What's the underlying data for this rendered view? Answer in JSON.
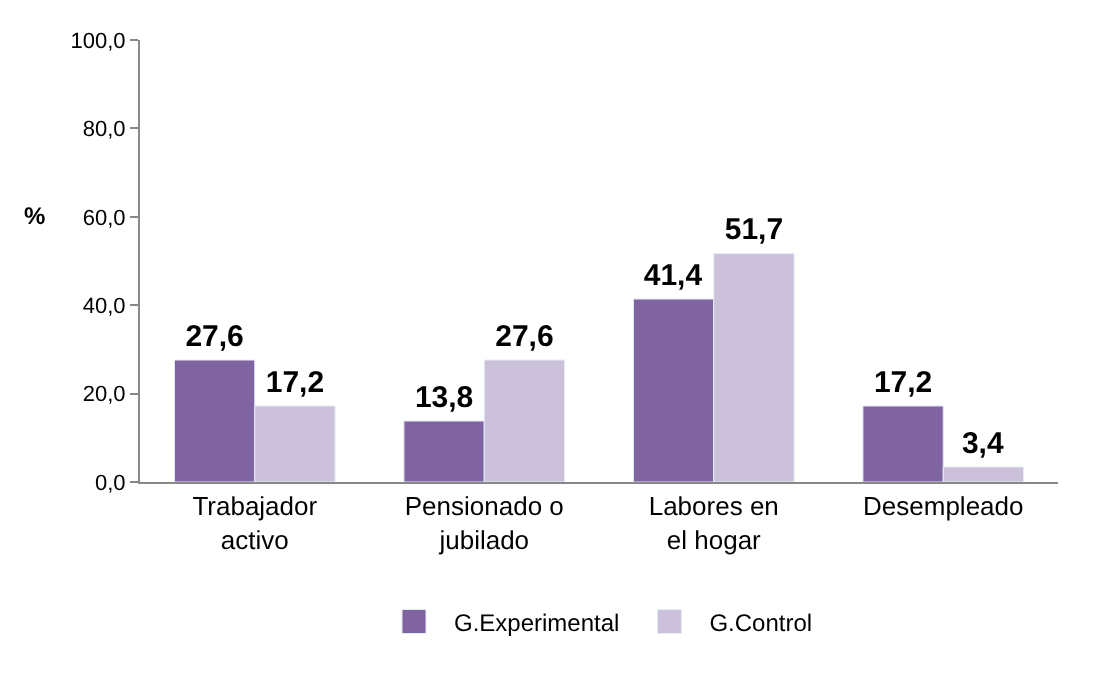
{
  "chart_data": {
    "type": "bar",
    "ylabel": "%",
    "categories": [
      "Trabajador activo",
      "Pensionado o jubilado",
      "Labores en el hogar",
      "Desempleado"
    ],
    "series": [
      {
        "name": "G.Experimental",
        "color": "#8064a2",
        "values": [
          27.6,
          13.8,
          41.4,
          17.2
        ],
        "value_labels": [
          "27,6",
          "13,8",
          "41,4",
          "17,2"
        ]
      },
      {
        "name": "G.Control",
        "color": "#ccc1da",
        "values": [
          17.2,
          27.6,
          51.7,
          3.4
        ],
        "value_labels": [
          "17,2",
          "27,6",
          "51,7",
          "3,4"
        ]
      }
    ],
    "ylim": [
      0,
      100
    ],
    "yticks": [
      {
        "value": 0,
        "label": "0,0"
      },
      {
        "value": 20,
        "label": "20,0"
      },
      {
        "value": 40,
        "label": "40,0"
      },
      {
        "value": 60,
        "label": "60,0"
      },
      {
        "value": 80,
        "label": "80,0"
      },
      {
        "value": 100,
        "label": "100,0"
      }
    ],
    "legend": "bottom"
  }
}
